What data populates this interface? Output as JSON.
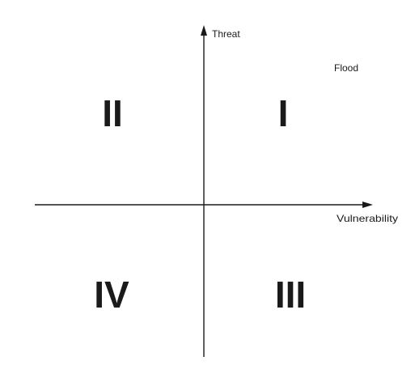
{
  "axes": {
    "y_label": "Threat",
    "x_label": "Vulnerability"
  },
  "quadrants": {
    "top_right": "I",
    "top_left": "II",
    "bottom_right": "III",
    "bottom_left": "IV"
  },
  "annotation": "Flood"
}
